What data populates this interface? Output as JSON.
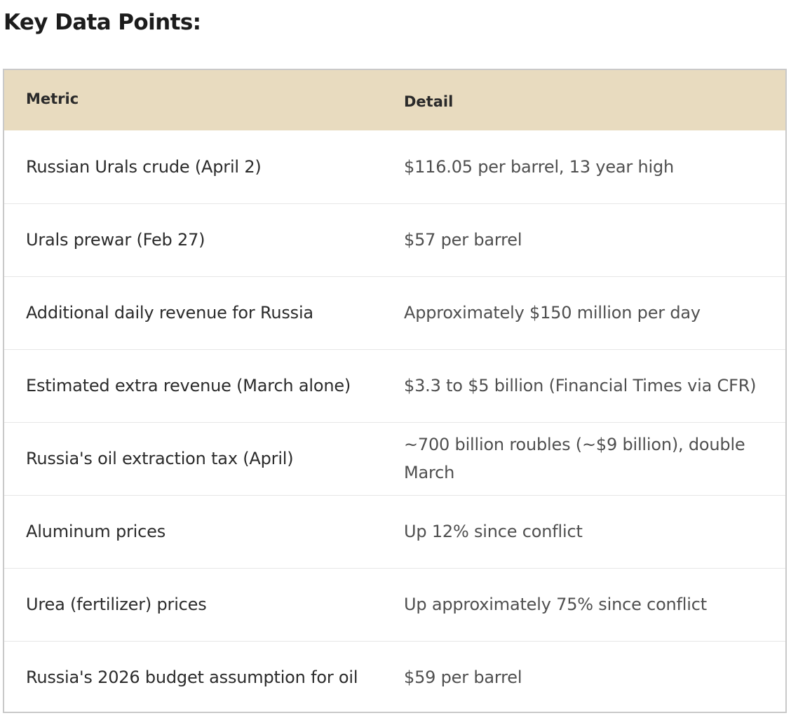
{
  "heading": "Key Data Points:",
  "table": {
    "headers": {
      "metric": "Metric",
      "detail": "Detail"
    },
    "rows": [
      {
        "metric": "Russian Urals crude (April 2)",
        "detail": "$116.05 per barrel, 13 year high"
      },
      {
        "metric": "Urals prewar (Feb 27)",
        "detail": "$57 per barrel"
      },
      {
        "metric": "Additional daily revenue for Russia",
        "detail": "Approximately $150 million per day"
      },
      {
        "metric": "Estimated extra revenue (March alone)",
        "detail": "$3.3 to $5 billion (Financial Times via CFR)"
      },
      {
        "metric": "Russia's oil extraction tax (April)",
        "detail": "~700 billion roubles (~$9 billion), double March"
      },
      {
        "metric": "Aluminum prices",
        "detail": "Up 12% since conflict"
      },
      {
        "metric": "Urea (fertilizer) prices",
        "detail": "Up approximately 75% since conflict"
      },
      {
        "metric": "Russia's 2026 budget assumption for oil",
        "detail": "$59 per barrel"
      }
    ]
  },
  "colors": {
    "header_background": "#e8dbbf",
    "border": "#c9c9c9",
    "row_divider": "#e6e6e6"
  }
}
